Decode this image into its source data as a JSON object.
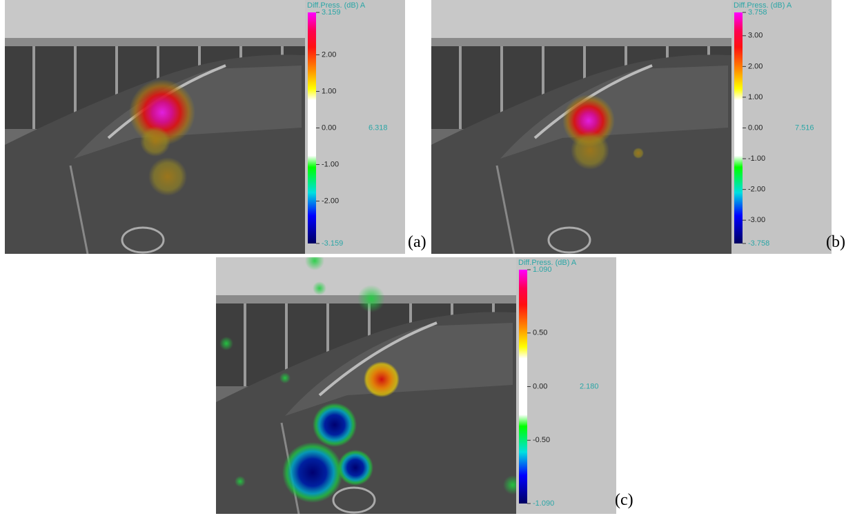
{
  "panels": [
    {
      "label": "(a)",
      "colorbar_title": "Diff.Press. (dB) A",
      "max_label": "3.159",
      "ticks": [
        "2.00",
        "1.00",
        "0.00",
        "-1.00",
        "-2.00"
      ],
      "min_label": "-3.159",
      "range_label": "6.318"
    },
    {
      "label": "(b)",
      "colorbar_title": "Diff.Press. (dB) A",
      "max_label": "3.758",
      "ticks": [
        "3.00",
        "2.00",
        "1.00",
        "0.00",
        "-1.00",
        "-2.00",
        "-3.00"
      ],
      "min_label": "-3.758",
      "range_label": "7.516"
    },
    {
      "label": "(c)",
      "colorbar_title": "Diff.Press. (dB) A",
      "max_label": "1.090",
      "ticks": [
        "0.50",
        "0.00",
        "-0.50"
      ],
      "min_label": "-1.090",
      "range_label": "2.180"
    }
  ]
}
